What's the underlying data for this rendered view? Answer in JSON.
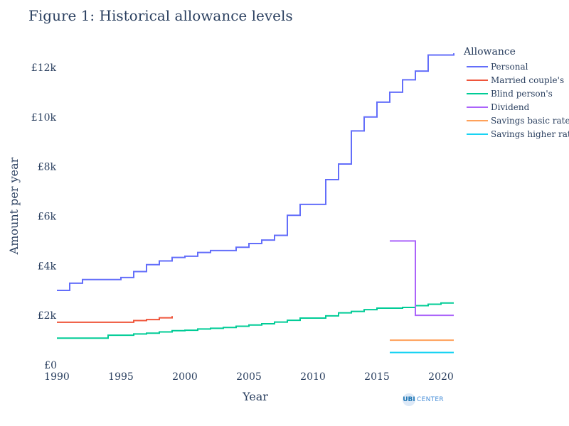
{
  "chart_data": {
    "type": "line",
    "line_shape": "step",
    "title": "Figure 1: Historical allowance levels",
    "xlabel": "Year",
    "ylabel": "Amount per year",
    "xlim": [
      1990,
      2021
    ],
    "ylim": [
      0,
      13000
    ],
    "x_ticks": [
      1990,
      1995,
      2000,
      2005,
      2010,
      2015,
      2020
    ],
    "y_ticks": [
      0,
      2000,
      4000,
      6000,
      8000,
      10000,
      12000
    ],
    "y_tick_labels": [
      "£0",
      "£2k",
      "£4k",
      "£6k",
      "£8k",
      "£10k",
      "£12k"
    ],
    "grid": false,
    "legend_title": "Allowance",
    "legend_position": "right",
    "series": [
      {
        "name": "Personal",
        "color": "#636efa",
        "x": [
          1990,
          1991,
          1992,
          1993,
          1994,
          1995,
          1996,
          1997,
          1998,
          1999,
          2000,
          2001,
          2002,
          2003,
          2004,
          2005,
          2006,
          2007,
          2008,
          2009,
          2010,
          2011,
          2012,
          2013,
          2014,
          2015,
          2016,
          2017,
          2018,
          2019,
          2020,
          2021
        ],
        "y": [
          3005,
          3295,
          3445,
          3445,
          3445,
          3525,
          3765,
          4045,
          4195,
          4335,
          4385,
          4535,
          4615,
          4615,
          4745,
          4895,
          5035,
          5225,
          6035,
          6475,
          6475,
          7475,
          8105,
          9440,
          10000,
          10600,
          11000,
          11500,
          11850,
          12500,
          12500,
          12570
        ]
      },
      {
        "name": "Married couple's",
        "color": "#ef553b",
        "x": [
          1990,
          1991,
          1992,
          1993,
          1994,
          1995,
          1996,
          1997,
          1998,
          1999
        ],
        "y": [
          1720,
          1720,
          1720,
          1720,
          1720,
          1720,
          1790,
          1830,
          1900,
          1970
        ]
      },
      {
        "name": "Blind person's",
        "color": "#00cc96",
        "x": [
          1990,
          1991,
          1992,
          1993,
          1994,
          1995,
          1996,
          1997,
          1998,
          1999,
          2000,
          2001,
          2002,
          2003,
          2004,
          2005,
          2006,
          2007,
          2008,
          2009,
          2010,
          2011,
          2012,
          2013,
          2014,
          2015,
          2016,
          2017,
          2018,
          2019,
          2020,
          2021
        ],
        "y": [
          1080,
          1080,
          1080,
          1080,
          1200,
          1200,
          1250,
          1280,
          1330,
          1380,
          1400,
          1450,
          1480,
          1510,
          1560,
          1610,
          1660,
          1730,
          1800,
          1890,
          1890,
          1980,
          2100,
          2160,
          2230,
          2290,
          2290,
          2320,
          2390,
          2450,
          2500,
          2500
        ]
      },
      {
        "name": "Dividend",
        "color": "#ab63fa",
        "x": [
          2016,
          2017,
          2018,
          2019,
          2020,
          2021
        ],
        "y": [
          5000,
          5000,
          2000,
          2000,
          2000,
          2000
        ]
      },
      {
        "name": "Savings basic rate",
        "color": "#ffa15a",
        "x": [
          2016,
          2017,
          2018,
          2019,
          2020,
          2021
        ],
        "y": [
          1000,
          1000,
          1000,
          1000,
          1000,
          1000
        ]
      },
      {
        "name": "Savings higher rate",
        "color": "#19d3f3",
        "x": [
          2016,
          2017,
          2018,
          2019,
          2020,
          2021
        ],
        "y": [
          500,
          500,
          500,
          500,
          500,
          500
        ]
      }
    ]
  },
  "logo": {
    "mark": "UBI",
    "text": "CENTER"
  }
}
